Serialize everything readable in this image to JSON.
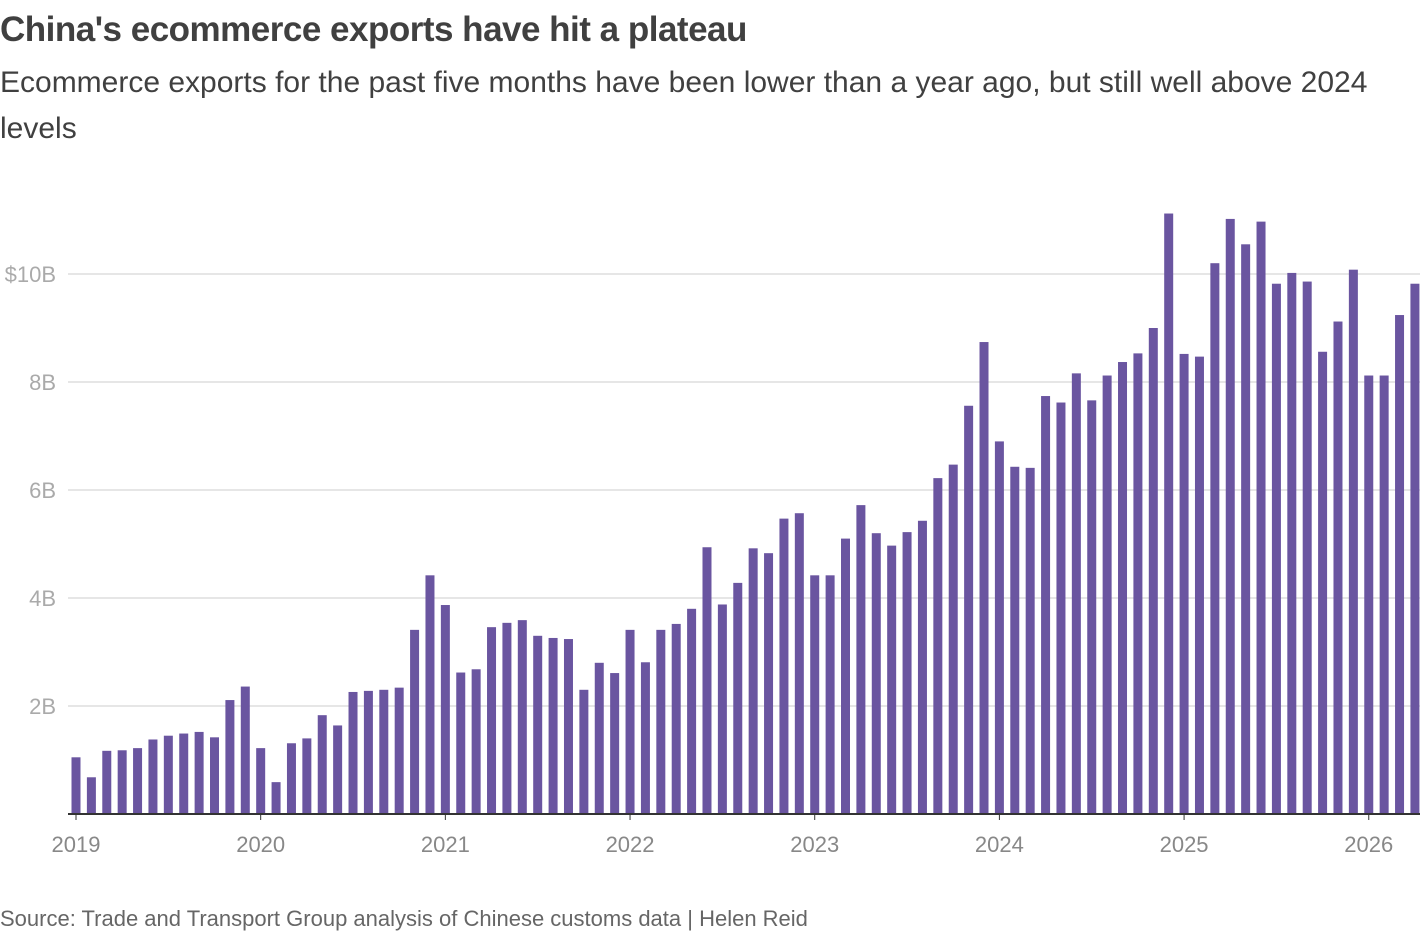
{
  "title": "China's ecommerce exports have hit a plateau",
  "subtitle": "Ecommerce exports for the past five months have been lower than a year ago, but still well above 2024 levels",
  "source": "Source: Trade and Transport Group analysis of Chinese customs data | Helen Reid",
  "colors": {
    "bar": "#6a55a0",
    "grid": "#cccccc",
    "axis": "#333333"
  },
  "chart_data": {
    "type": "bar",
    "title": "China's ecommerce exports have hit a plateau",
    "xlabel": "",
    "ylabel": "",
    "ylim": [
      0,
      11.5
    ],
    "grid": true,
    "yticks": [
      {
        "value": 2,
        "label": "2B"
      },
      {
        "value": 4,
        "label": "4B"
      },
      {
        "value": 6,
        "label": "6B"
      },
      {
        "value": 8,
        "label": "8B"
      },
      {
        "value": 10,
        "label": "$10B"
      }
    ],
    "xticks": [
      {
        "date": "2019-01",
        "label": "2019"
      },
      {
        "date": "2020-01",
        "label": "2020"
      },
      {
        "date": "2021-01",
        "label": "2021"
      },
      {
        "date": "2022-01",
        "label": "2022"
      },
      {
        "date": "2023-01",
        "label": "2023"
      },
      {
        "date": "2024-01",
        "label": "2024"
      },
      {
        "date": "2025-01",
        "label": "2025"
      },
      {
        "date": "2026-01",
        "label": "2026"
      }
    ],
    "series": [
      {
        "values": [
          {
            "x": "2019-01",
            "y": 1.05
          },
          {
            "x": "2019-02",
            "y": 0.68
          },
          {
            "x": "2019-03",
            "y": 1.17
          },
          {
            "x": "2019-04",
            "y": 1.18
          },
          {
            "x": "2019-05",
            "y": 1.22
          },
          {
            "x": "2019-06",
            "y": 1.38
          },
          {
            "x": "2019-07",
            "y": 1.45
          },
          {
            "x": "2019-08",
            "y": 1.49
          },
          {
            "x": "2019-09",
            "y": 1.52
          },
          {
            "x": "2019-10",
            "y": 1.42
          },
          {
            "x": "2019-11",
            "y": 2.11
          },
          {
            "x": "2019-12",
            "y": 2.36
          },
          {
            "x": "2020-01",
            "y": 1.22
          },
          {
            "x": "2020-02",
            "y": 0.59
          },
          {
            "x": "2020-03",
            "y": 1.31
          },
          {
            "x": "2020-04",
            "y": 1.4
          },
          {
            "x": "2020-05",
            "y": 1.83
          },
          {
            "x": "2020-06",
            "y": 1.64
          },
          {
            "x": "2020-07",
            "y": 2.26
          },
          {
            "x": "2020-08",
            "y": 2.28
          },
          {
            "x": "2020-09",
            "y": 2.3
          },
          {
            "x": "2020-10",
            "y": 2.34
          },
          {
            "x": "2020-11",
            "y": 3.41
          },
          {
            "x": "2020-12",
            "y": 4.42
          },
          {
            "x": "2021-01",
            "y": 3.87
          },
          {
            "x": "2021-02",
            "y": 2.62
          },
          {
            "x": "2021-03",
            "y": 2.68
          },
          {
            "x": "2021-04",
            "y": 3.46
          },
          {
            "x": "2021-05",
            "y": 3.54
          },
          {
            "x": "2021-06",
            "y": 3.59
          },
          {
            "x": "2021-07",
            "y": 3.3
          },
          {
            "x": "2021-08",
            "y": 3.26
          },
          {
            "x": "2021-09",
            "y": 3.24
          },
          {
            "x": "2021-10",
            "y": 2.3
          },
          {
            "x": "2021-11",
            "y": 2.8
          },
          {
            "x": "2021-12",
            "y": 2.61
          },
          {
            "x": "2022-01",
            "y": 3.41
          },
          {
            "x": "2022-02",
            "y": 2.81
          },
          {
            "x": "2022-03",
            "y": 3.41
          },
          {
            "x": "2022-04",
            "y": 3.52
          },
          {
            "x": "2022-05",
            "y": 3.8
          },
          {
            "x": "2022-06",
            "y": 4.94
          },
          {
            "x": "2022-07",
            "y": 3.88
          },
          {
            "x": "2022-08",
            "y": 4.28
          },
          {
            "x": "2022-09",
            "y": 4.92
          },
          {
            "x": "2022-10",
            "y": 4.83
          },
          {
            "x": "2022-11",
            "y": 5.47
          },
          {
            "x": "2022-12",
            "y": 5.57
          },
          {
            "x": "2023-01",
            "y": 4.42
          },
          {
            "x": "2023-02",
            "y": 4.42
          },
          {
            "x": "2023-03",
            "y": 5.1
          },
          {
            "x": "2023-04",
            "y": 5.72
          },
          {
            "x": "2023-05",
            "y": 5.2
          },
          {
            "x": "2023-06",
            "y": 4.97
          },
          {
            "x": "2023-07",
            "y": 5.22
          },
          {
            "x": "2023-08",
            "y": 5.43
          },
          {
            "x": "2023-09",
            "y": 6.22
          },
          {
            "x": "2023-10",
            "y": 6.47
          },
          {
            "x": "2023-11",
            "y": 7.56
          },
          {
            "x": "2023-12",
            "y": 8.74
          },
          {
            "x": "2024-01",
            "y": 6.9
          },
          {
            "x": "2024-02",
            "y": 6.43
          },
          {
            "x": "2024-03",
            "y": 6.41
          },
          {
            "x": "2024-04",
            "y": 7.74
          },
          {
            "x": "2024-05",
            "y": 7.62
          },
          {
            "x": "2024-06",
            "y": 8.16
          },
          {
            "x": "2024-07",
            "y": 7.66
          },
          {
            "x": "2024-08",
            "y": 8.12
          },
          {
            "x": "2024-09",
            "y": 8.37
          },
          {
            "x": "2024-10",
            "y": 8.53
          },
          {
            "x": "2024-11",
            "y": 9.0
          },
          {
            "x": "2024-12",
            "y": 11.12
          },
          {
            "x": "2025-01",
            "y": 8.52
          },
          {
            "x": "2025-02",
            "y": 8.47
          },
          {
            "x": "2025-03",
            "y": 10.2
          },
          {
            "x": "2025-04",
            "y": 11.02
          },
          {
            "x": "2025-05",
            "y": 10.55
          },
          {
            "x": "2025-06",
            "y": 10.97
          },
          {
            "x": "2025-07",
            "y": 9.82
          },
          {
            "x": "2025-08",
            "y": 10.02
          },
          {
            "x": "2025-09",
            "y": 9.86
          },
          {
            "x": "2025-10",
            "y": 8.56
          },
          {
            "x": "2025-11",
            "y": 9.12
          },
          {
            "x": "2025-12",
            "y": 10.08
          },
          {
            "x": "2026-01",
            "y": 8.12
          },
          {
            "x": "2026-02",
            "y": 8.12
          },
          {
            "x": "2026-03",
            "y": 9.24
          },
          {
            "x": "2026-04",
            "y": 9.82
          }
        ]
      }
    ]
  }
}
